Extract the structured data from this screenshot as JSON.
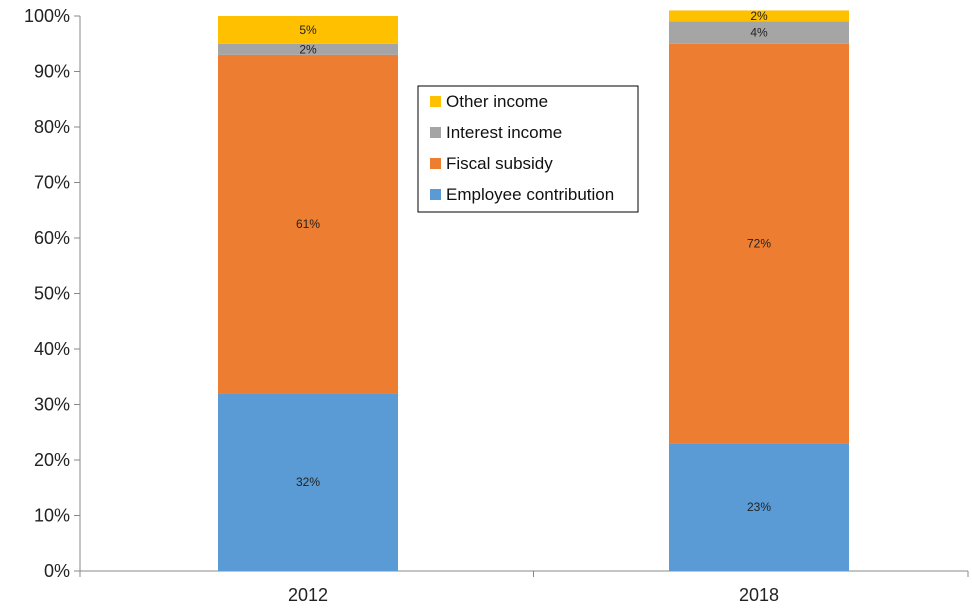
{
  "chart_data": {
    "type": "bar",
    "stacked": true,
    "percent_stacked": true,
    "categories": [
      "2012",
      "2018"
    ],
    "series": [
      {
        "name": "Employee contribution",
        "color": "#5B9BD5",
        "values": [
          32,
          23
        ],
        "labels": [
          "32%",
          "23%"
        ]
      },
      {
        "name": "Fiscal subsidy",
        "color": "#ED7D31",
        "values": [
          61,
          72
        ],
        "labels": [
          "61%",
          "72%"
        ]
      },
      {
        "name": "Interest income",
        "color": "#A5A5A5",
        "values": [
          2,
          4
        ],
        "labels": [
          "2%",
          "4%"
        ]
      },
      {
        "name": "Other income",
        "color": "#FFC000",
        "values": [
          5,
          2
        ],
        "labels": [
          "5%",
          "2%"
        ]
      }
    ],
    "y_ticks": [
      "0%",
      "10%",
      "20%",
      "30%",
      "40%",
      "50%",
      "60%",
      "70%",
      "80%",
      "90%",
      "100%"
    ],
    "ylim": [
      0,
      100
    ],
    "grid": false,
    "legend_position": "top-center",
    "legend_order": [
      "Other income",
      "Interest income",
      "Fiscal subsidy",
      "Employee contribution"
    ]
  }
}
